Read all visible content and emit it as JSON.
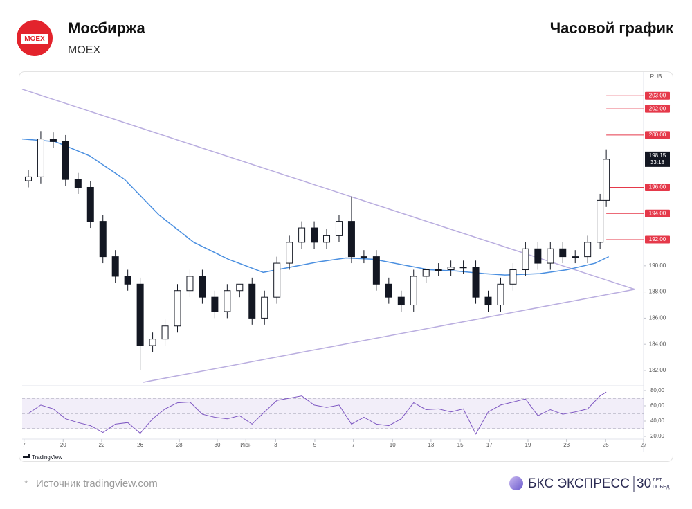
{
  "header": {
    "logo": "MOEX",
    "title": "Мосбиржа",
    "subtitle": "MOEX",
    "chart_kind": "Часовой график"
  },
  "footer": {
    "source_mark": "*",
    "source": "Источник tradingview.com",
    "brand": "БКС ЭКСПРЕСС",
    "anniversary": "30",
    "anniversary_top": "ЛЕТ",
    "anniversary_bottom": "ПОБЕД"
  },
  "chart_data": {
    "type": "candlestick",
    "currency": "RUB",
    "watermark": "TradingView",
    "xlim": [
      0,
      100
    ],
    "ylim": [
      180.94,
      204.76
    ],
    "yticks": [
      {
        "value": 182,
        "label": "182,00"
      },
      {
        "value": 184,
        "label": "184,00"
      },
      {
        "value": 186,
        "label": "186,00"
      },
      {
        "value": 188,
        "label": "188,00"
      },
      {
        "value": 190,
        "label": "190,00"
      }
    ],
    "xticks": [
      {
        "value": 0.3,
        "label": "7"
      },
      {
        "value": 6.6,
        "label": "20"
      },
      {
        "value": 12.8,
        "label": "22"
      },
      {
        "value": 19.0,
        "label": "26"
      },
      {
        "value": 25.3,
        "label": "28"
      },
      {
        "value": 31.4,
        "label": "30"
      },
      {
        "value": 36.0,
        "label": "Июн"
      },
      {
        "value": 40.8,
        "label": "3"
      },
      {
        "value": 47.1,
        "label": "5"
      },
      {
        "value": 53.3,
        "label": "7"
      },
      {
        "value": 59.6,
        "label": "10"
      },
      {
        "value": 65.8,
        "label": "13"
      },
      {
        "value": 70.5,
        "label": "15"
      },
      {
        "value": 75.2,
        "label": "17"
      },
      {
        "value": 81.4,
        "label": "19"
      },
      {
        "value": 87.6,
        "label": "23"
      },
      {
        "value": 93.9,
        "label": "25"
      },
      {
        "value": 100,
        "label": "27"
      }
    ],
    "x": [
      1,
      3,
      5,
      7,
      9,
      11,
      13,
      15,
      17,
      19,
      21,
      23,
      25,
      27,
      29,
      31,
      33,
      35,
      37,
      39,
      41,
      43,
      45,
      47,
      49,
      51,
      53,
      55,
      57,
      59,
      61,
      63,
      65,
      67,
      69,
      71,
      73,
      75,
      77,
      79,
      81,
      83,
      85,
      87,
      89,
      91,
      93,
      94
    ],
    "open": [
      196.5,
      196.8,
      199.7,
      199.5,
      196.6,
      196.0,
      193.4,
      190.7,
      189.2,
      188.6,
      183.9,
      184.4,
      185.4,
      188.1,
      189.2,
      187.6,
      186.5,
      188.1,
      188.6,
      186.0,
      187.6,
      190.2,
      191.8,
      192.9,
      191.8,
      192.3,
      193.4,
      190.7,
      190.7,
      188.6,
      187.6,
      187.0,
      189.2,
      189.7,
      189.7,
      189.9,
      189.9,
      187.6,
      187.0,
      188.6,
      189.7,
      191.3,
      190.2,
      191.3,
      190.7,
      190.7,
      191.8,
      195.0
    ],
    "high": [
      197.3,
      200.3,
      200.2,
      200.0,
      197.1,
      196.5,
      193.9,
      191.2,
      189.7,
      189.1,
      184.9,
      185.9,
      188.6,
      189.7,
      189.7,
      188.1,
      188.6,
      188.6,
      189.1,
      188.1,
      190.7,
      192.3,
      193.4,
      193.4,
      192.8,
      193.9,
      195.3,
      191.2,
      191.2,
      189.1,
      188.1,
      189.7,
      189.7,
      190.2,
      190.4,
      190.4,
      190.4,
      188.1,
      189.1,
      190.2,
      191.8,
      191.8,
      191.8,
      191.8,
      191.2,
      192.3,
      195.5,
      198.9
    ],
    "low": [
      196.0,
      196.3,
      199.0,
      196.1,
      195.5,
      192.9,
      190.2,
      188.7,
      188.1,
      182.0,
      183.4,
      183.9,
      184.9,
      187.6,
      187.1,
      186.0,
      186.0,
      187.6,
      185.5,
      185.5,
      187.1,
      189.7,
      191.3,
      191.3,
      191.3,
      191.8,
      190.2,
      190.2,
      188.1,
      187.1,
      186.5,
      186.5,
      188.7,
      189.2,
      189.2,
      189.4,
      187.1,
      186.5,
      186.5,
      188.1,
      189.2,
      189.7,
      189.7,
      190.2,
      190.2,
      190.2,
      191.3,
      194.5
    ],
    "close": [
      196.8,
      199.7,
      199.5,
      196.6,
      196.0,
      193.4,
      190.7,
      189.2,
      188.6,
      183.9,
      184.4,
      185.4,
      188.1,
      189.2,
      187.6,
      186.5,
      188.1,
      188.6,
      186.0,
      187.6,
      190.2,
      191.8,
      192.9,
      191.8,
      192.3,
      193.4,
      190.7,
      190.7,
      188.6,
      187.6,
      187.0,
      189.2,
      189.7,
      189.7,
      189.9,
      189.9,
      187.6,
      187.0,
      188.6,
      189.7,
      191.3,
      190.2,
      191.3,
      190.7,
      190.7,
      191.8,
      195.0,
      198.15
    ],
    "moving_average": {
      "color": "#4a8fe0",
      "x": [
        0,
        5.3,
        10.9,
        16.5,
        22.0,
        27.6,
        33.2,
        38.8,
        43.2,
        47.7,
        52.1,
        56.6,
        61.0,
        65.5,
        69.9,
        74.4,
        77.7,
        83.3,
        87.7,
        92.2,
        94.4
      ],
      "values": [
        199.7,
        199.5,
        198.4,
        196.6,
        193.9,
        191.8,
        190.5,
        189.5,
        189.9,
        190.3,
        190.6,
        190.5,
        190.1,
        189.7,
        189.6,
        189.4,
        189.3,
        189.4,
        189.7,
        190.2,
        190.7
      ]
    },
    "trendlines": [
      {
        "color": "#b9addf",
        "x": [
          0,
          98.6
        ],
        "y": [
          203.5,
          188.2
        ]
      },
      {
        "color": "#b9addf",
        "x": [
          19.5,
          98.6
        ],
        "y": [
          181.1,
          188.2
        ]
      }
    ],
    "price_levels": [
      {
        "value": 192,
        "label": "192,00"
      },
      {
        "value": 194,
        "label": "194,00"
      },
      {
        "value": 196,
        "label": "196,00"
      },
      {
        "value": 200,
        "label": "200,00"
      },
      {
        "value": 202,
        "label": "202,00"
      },
      {
        "value": 203,
        "label": "203,00"
      }
    ],
    "level_color": "#e5394a",
    "last_price": {
      "value": 198.15,
      "label": "198,15",
      "timer": "33:18"
    },
    "rsi": {
      "color": "#7e57c2",
      "ylim": [
        18.2,
        83.6
      ],
      "yticks": [
        {
          "value": 20,
          "label": "20,00"
        },
        {
          "value": 40,
          "label": "40,00"
        },
        {
          "value": 60,
          "label": "60,00"
        },
        {
          "value": 80,
          "label": "80,00"
        }
      ],
      "band": [
        30,
        70
      ],
      "levels": [
        30,
        50,
        70
      ],
      "values": [
        50,
        61,
        56,
        43,
        38,
        34,
        25,
        36,
        38,
        24,
        43,
        56,
        64,
        65,
        49,
        45,
        43,
        47,
        36,
        52,
        67,
        70,
        73,
        61,
        58,
        61,
        36,
        45,
        36,
        34,
        43,
        64,
        55,
        56,
        52,
        56,
        23,
        52,
        61,
        65,
        69,
        47,
        55,
        49,
        52,
        56,
        73,
        78
      ]
    }
  }
}
